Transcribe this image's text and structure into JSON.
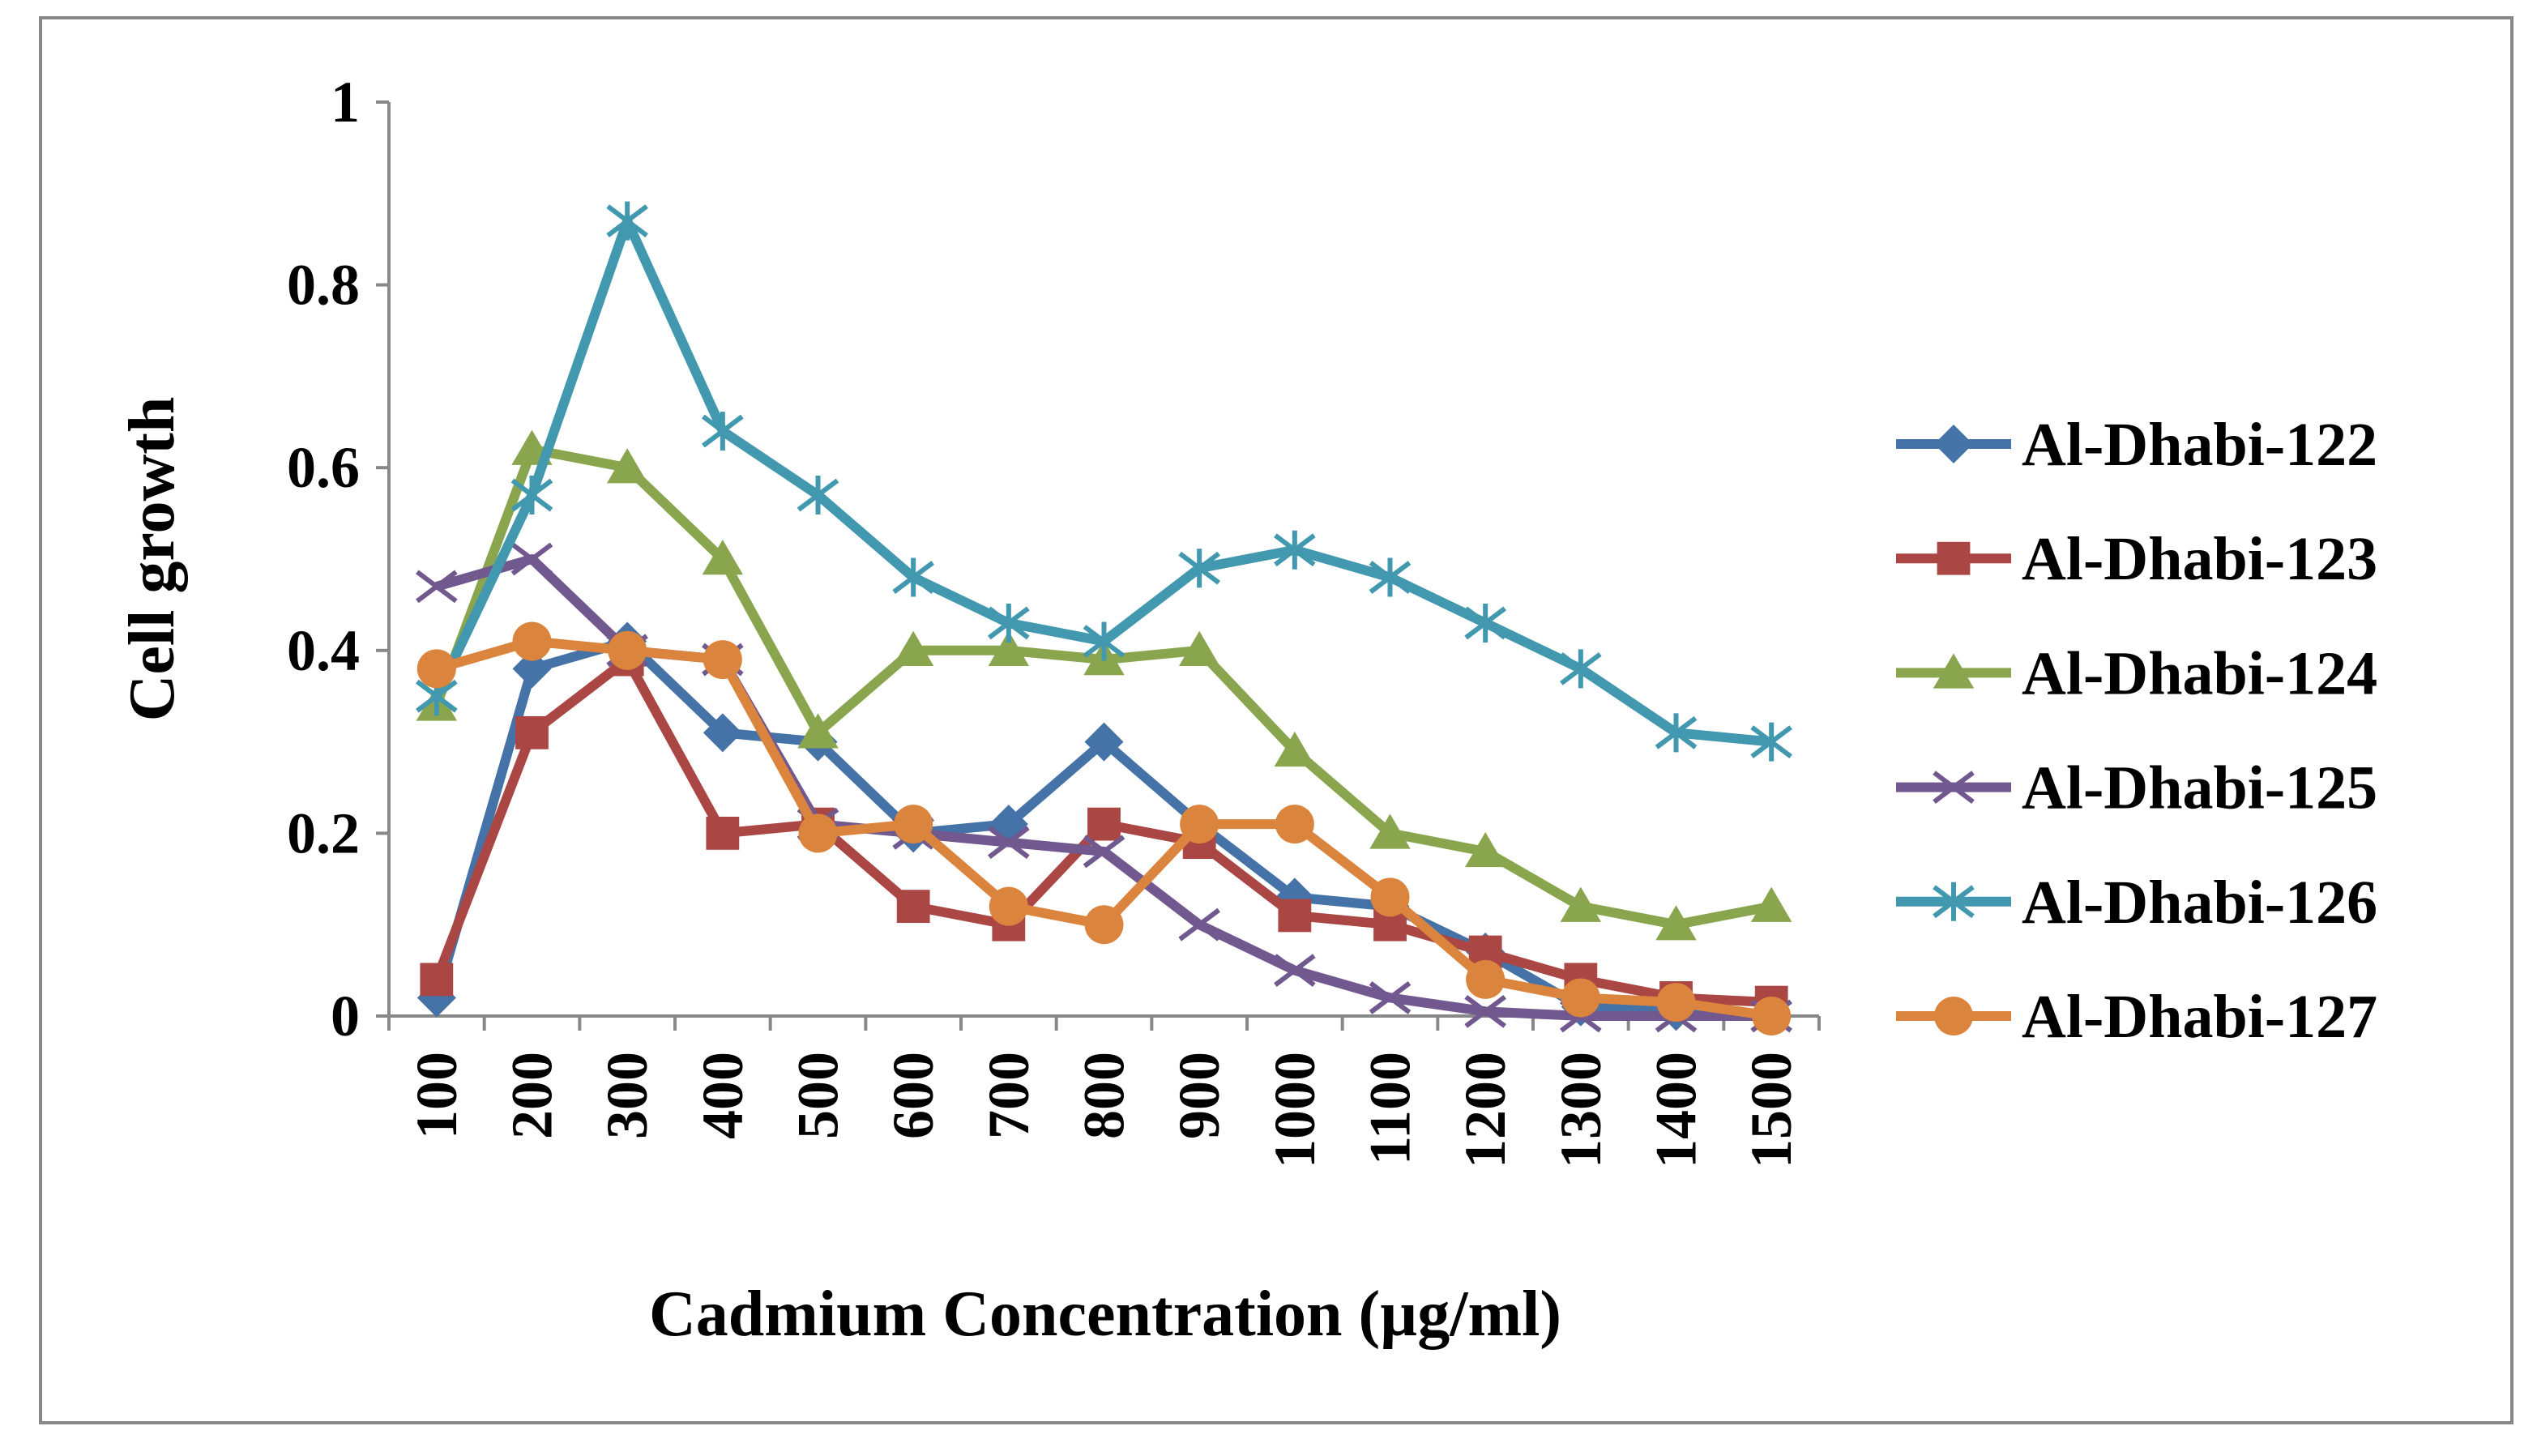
{
  "chart_data": {
    "type": "line",
    "title": "",
    "xlabel": "Cadmium Concentration (µg/ml)",
    "ylabel": "Cell growth",
    "ylim": [
      0,
      1
    ],
    "yticks": [
      "0",
      "0.2",
      "0.4",
      "0.6",
      "0.8",
      "1"
    ],
    "categories": [
      "100",
      "200",
      "300",
      "400",
      "500",
      "600",
      "700",
      "800",
      "900",
      "1000",
      "1100",
      "1200",
      "1300",
      "1400",
      "1500"
    ],
    "grid": false,
    "legend_position": "right",
    "series": [
      {
        "name": "Al-Dhabi-122",
        "color": "#4572A7",
        "marker": "diamond",
        "values": [
          0.02,
          0.38,
          0.41,
          0.31,
          0.3,
          0.2,
          0.21,
          0.3,
          0.21,
          0.13,
          0.12,
          0.07,
          0.01,
          0.005,
          0.0
        ]
      },
      {
        "name": "Al-Dhabi-123",
        "color": "#AA4643",
        "marker": "square",
        "values": [
          0.04,
          0.31,
          0.39,
          0.2,
          0.21,
          0.12,
          0.1,
          0.21,
          0.19,
          0.11,
          0.1,
          0.07,
          0.04,
          0.02,
          0.015
        ]
      },
      {
        "name": "Al-Dhabi-124",
        "color": "#89A54E",
        "marker": "triangle",
        "values": [
          0.34,
          0.62,
          0.6,
          0.5,
          0.31,
          0.4,
          0.4,
          0.39,
          0.4,
          0.29,
          0.2,
          0.18,
          0.12,
          0.1,
          0.12
        ]
      },
      {
        "name": "Al-Dhabi-125",
        "color": "#71588F",
        "marker": "x",
        "values": [
          0.47,
          0.5,
          0.4,
          0.39,
          0.21,
          0.2,
          0.19,
          0.18,
          0.1,
          0.05,
          0.02,
          0.005,
          0.0,
          0.0,
          0.0
        ]
      },
      {
        "name": "Al-Dhabi-126",
        "color": "#4198AF",
        "marker": "asterisk",
        "values": [
          0.35,
          0.57,
          0.87,
          0.64,
          0.57,
          0.48,
          0.43,
          0.41,
          0.49,
          0.51,
          0.48,
          0.43,
          0.38,
          0.31,
          0.3
        ]
      },
      {
        "name": "Al-Dhabi-127",
        "color": "#DB843D",
        "marker": "circle",
        "values": [
          0.38,
          0.41,
          0.4,
          0.39,
          0.2,
          0.21,
          0.12,
          0.1,
          0.21,
          0.21,
          0.13,
          0.04,
          0.02,
          0.015,
          0.0
        ]
      }
    ]
  }
}
